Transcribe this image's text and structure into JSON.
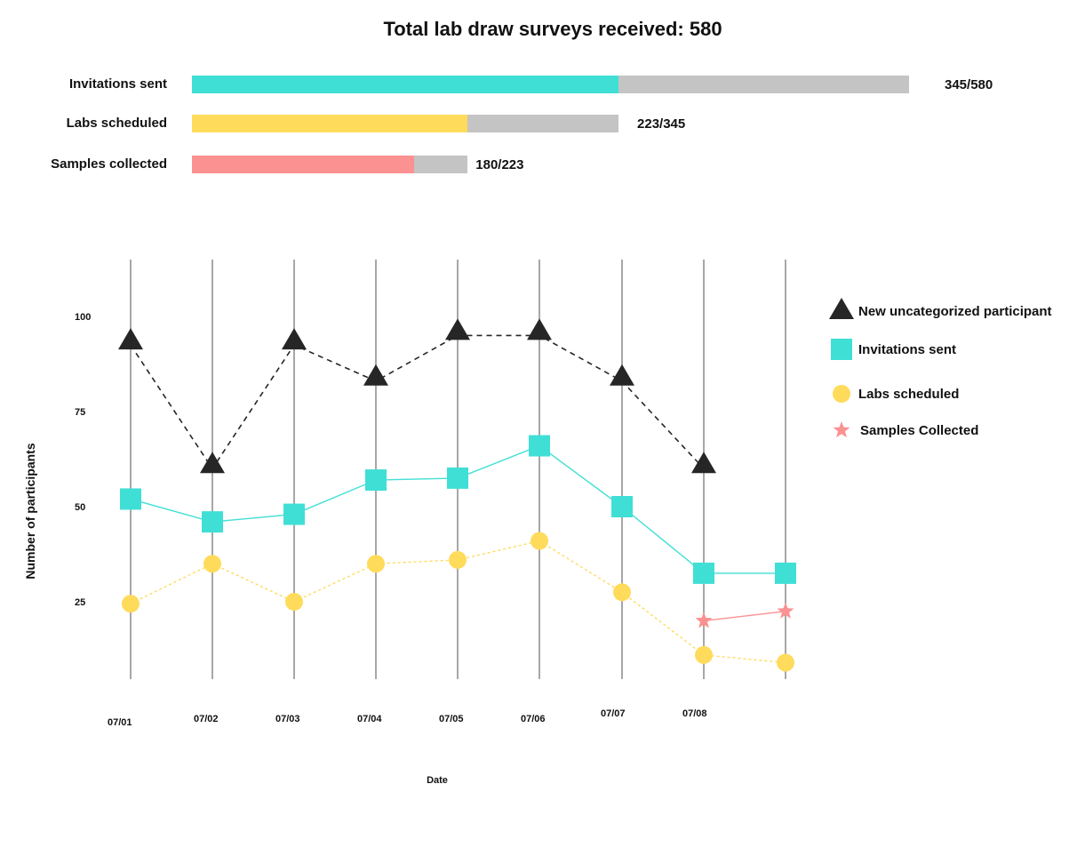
{
  "title": "Total lab draw surveys received: 580",
  "progress_bars": [
    {
      "label": "Invitations sent",
      "value": 345,
      "total": 580,
      "value_text": "345/580",
      "color": "#40dfd5"
    },
    {
      "label": "Labs scheduled",
      "value": 223,
      "total": 345,
      "value_text": "223/345",
      "color": "#ffdb5c"
    },
    {
      "label": "Samples collected",
      "value": 180,
      "total": 223,
      "value_text": "180/223",
      "color": "#fc9191"
    }
  ],
  "chart_data": {
    "type": "line",
    "title": "",
    "xlabel": "Date",
    "ylabel": "Number of participants",
    "categories": [
      "07/01",
      "07/02",
      "07/03",
      "07/04",
      "07/05",
      "07/06",
      "07/07",
      "07/08",
      ""
    ],
    "yticks": [
      "100",
      "75",
      "50",
      "25"
    ],
    "ytick_values": [
      100,
      75,
      50,
      25
    ],
    "ylim": [
      0,
      110
    ],
    "grid": "vertical",
    "legend_position": "right",
    "series": [
      {
        "name": "New uncategorized participant",
        "marker": "triangle",
        "line": "dashed",
        "color": "#262626",
        "values": [
          92.5,
          60,
          92.5,
          83,
          95,
          95,
          83,
          60,
          null
        ]
      },
      {
        "name": "Invitations sent",
        "marker": "square",
        "line": "solid",
        "color": "#40dfd5",
        "values": [
          52,
          46,
          48,
          57,
          57.5,
          66,
          50,
          32.5,
          32.5
        ]
      },
      {
        "name": "Labs scheduled",
        "marker": "circle",
        "line": "dotted",
        "color": "#ffdb5c",
        "values": [
          24.5,
          35,
          25,
          35,
          36,
          41,
          27.5,
          11,
          9
        ]
      },
      {
        "name": "Samples Collected",
        "marker": "star",
        "line": "solid",
        "color": "#fc9191",
        "values": [
          null,
          null,
          null,
          null,
          null,
          null,
          null,
          20,
          22.5
        ]
      }
    ]
  }
}
